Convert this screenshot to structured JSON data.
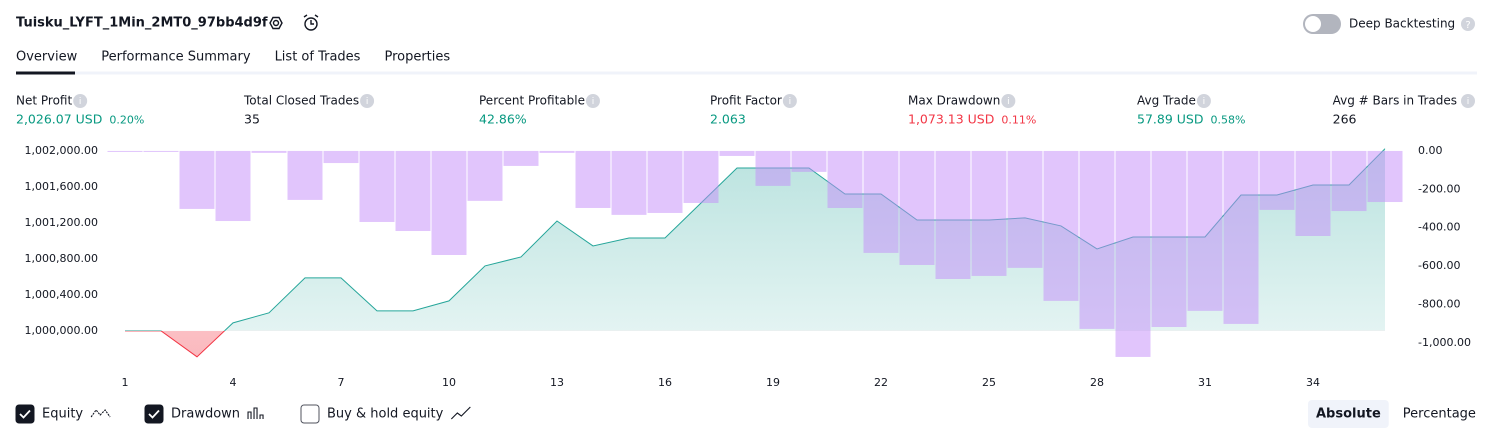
{
  "header": {
    "title": "Tuisku_LYFT_1Min_2MT0_97bb4d9f",
    "toggle_label": "Deep Backtesting"
  },
  "tabs": [
    "Overview",
    "Performance Summary",
    "List of Trades",
    "Properties"
  ],
  "stats": [
    {
      "label": "Net Profit",
      "value": "2,026.07 USD",
      "change": "0.20%",
      "color": "#089981"
    },
    {
      "label": "Total Closed Trades",
      "value": "35",
      "color": "#131722"
    },
    {
      "label": "Percent Profitable",
      "value": "42.86%",
      "color": "#089981"
    },
    {
      "label": "Profit Factor",
      "value": "2.063",
      "color": "#089981"
    },
    {
      "label": "Max Drawdown",
      "value": "1,073.13 USD",
      "change": "0.11%",
      "color": "#f23645"
    },
    {
      "label": "Avg Trade",
      "value": "57.89 USD",
      "change": "0.58%",
      "color": "#089981"
    },
    {
      "label": "Avg # Bars in Trades",
      "value": "266",
      "color": "#131722"
    }
  ],
  "chart_data": {
    "type": "combo",
    "x": [
      1,
      2,
      3,
      4,
      5,
      6,
      7,
      8,
      9,
      10,
      11,
      12,
      13,
      14,
      15,
      16,
      17,
      18,
      19,
      20,
      21,
      22,
      23,
      24,
      25,
      26,
      27,
      28,
      29,
      30,
      31,
      32,
      33,
      34,
      35,
      36
    ],
    "xlim": [
      0.5,
      36.5
    ],
    "xticks": [
      1,
      4,
      7,
      10,
      13,
      16,
      19,
      22,
      25,
      28,
      31,
      34
    ],
    "ylim": [
      999620,
      1002067
    ],
    "yticks": [
      {
        "value": 1000000,
        "label": "1,000,000.00"
      },
      {
        "value": 1000400,
        "label": "1,000,400.00"
      },
      {
        "value": 1000800,
        "label": "1,000,800.00"
      },
      {
        "value": 1001200,
        "label": "1,001,200.00"
      },
      {
        "value": 1001600,
        "label": "1,001,600.00"
      },
      {
        "value": 1002000,
        "label": "1,002,000.00"
      }
    ],
    "y2lim": [
      -1115,
      31
    ],
    "y2ticks": [
      {
        "value": 0,
        "label": "0.00"
      },
      {
        "value": -200,
        "label": "-200.00"
      },
      {
        "value": -400,
        "label": "-400.00"
      },
      {
        "value": -600,
        "label": "-600.00"
      },
      {
        "value": -800,
        "label": "-800.00"
      },
      {
        "value": -1000,
        "label": "-1,000.00"
      }
    ],
    "baseline": 1000000,
    "series": [
      {
        "name": "Equity",
        "type": "area",
        "color": "#26a69a",
        "negative_color": "#f23645",
        "checked": true,
        "values": [
          1000000,
          1000000,
          999711,
          1000089,
          1000200,
          1000589,
          1000589,
          1000222,
          1000222,
          1000333,
          1000722,
          1000822,
          1001222,
          1000944,
          1001033,
          1001033,
          1001422,
          1001811,
          1001811,
          1001811,
          1001522,
          1001522,
          1001233,
          1001233,
          1001233,
          1001256,
          1001167,
          1000911,
          1001044,
          1001044,
          1001044,
          1001511,
          1001511,
          1001622,
          1001622,
          1002026
        ]
      },
      {
        "name": "Drawdown",
        "type": "bar",
        "axis": "y2",
        "color": "#c48bfa",
        "checked": true,
        "values": [
          0,
          0,
          -302,
          -365,
          -10,
          -255,
          -63,
          -370,
          -417,
          -542,
          -260,
          -78,
          -10,
          -297,
          -333,
          -323,
          -271,
          -26,
          -182,
          -109,
          -297,
          -531,
          -594,
          -667,
          -651,
          -609,
          -781,
          -927,
          -1073,
          -917,
          -833,
          -901,
          -307,
          -443,
          -313,
          -266
        ]
      }
    ],
    "extra_toggles": [
      {
        "name": "Buy & hold equity",
        "checked": false
      }
    ],
    "scale_buttons": [
      {
        "label": "Absolute",
        "active": true
      },
      {
        "label": "Percentage",
        "active": false
      }
    ]
  }
}
